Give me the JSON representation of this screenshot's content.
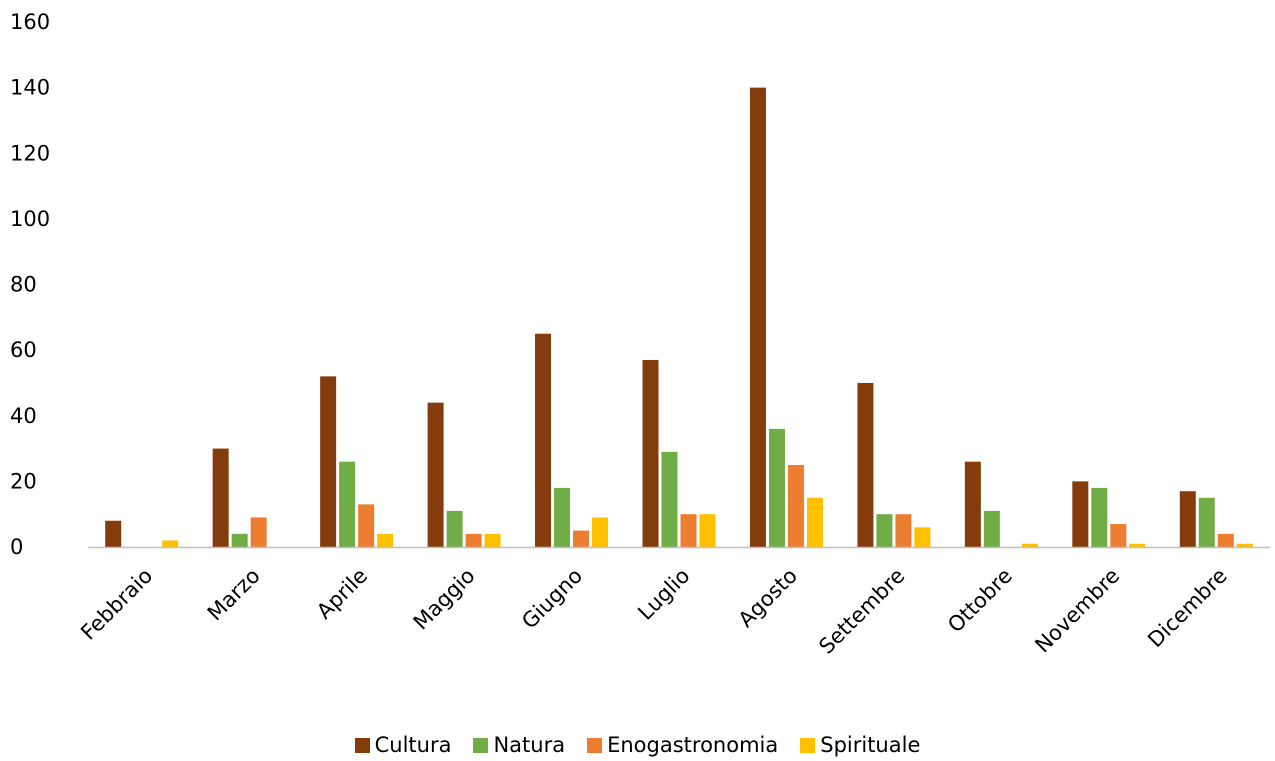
{
  "chart_data": {
    "type": "bar",
    "title": "",
    "xlabel": "",
    "ylabel": "",
    "categories": [
      "Febbraio",
      "Marzo",
      "Aprile",
      "Maggio",
      "Giugno",
      "Luglio",
      "Agosto",
      "Settembre",
      "Ottobre",
      "Novembre",
      "Dicembre"
    ],
    "series": [
      {
        "name": "Cultura",
        "color": "#843C0C",
        "values": [
          8,
          30,
          52,
          44,
          65,
          57,
          140,
          50,
          26,
          20,
          17
        ]
      },
      {
        "name": "Natura",
        "color": "#70AD47",
        "values": [
          0,
          4,
          26,
          11,
          18,
          29,
          36,
          10,
          11,
          18,
          15
        ]
      },
      {
        "name": "Enogastronomia",
        "color": "#ED7D31",
        "values": [
          0,
          9,
          13,
          4,
          5,
          10,
          25,
          10,
          0,
          7,
          4
        ]
      },
      {
        "name": "Spirituale",
        "color": "#FFC000",
        "values": [
          2,
          0,
          4,
          4,
          9,
          10,
          15,
          6,
          1,
          1,
          1
        ]
      }
    ],
    "ylim": [
      0,
      160
    ],
    "yticks": [
      0,
      20,
      40,
      60,
      80,
      100,
      120,
      140,
      160
    ],
    "grid": false,
    "legend_position": "bottom"
  }
}
